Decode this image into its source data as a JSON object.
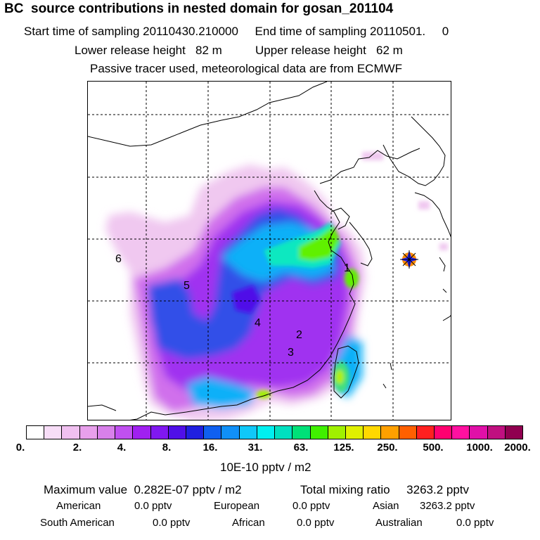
{
  "header": {
    "title": "BC  source contributions in nested domain for gosan_201104",
    "line1": "Start time of sampling 20110430.210000     End time of sampling 20110501.     0",
    "line2": "Lower release height   82 m          Upper release height   62 m",
    "line3": "Passive tracer used, meteorological data are from ECMWF"
  },
  "map": {
    "receptor_marker": "star-marker",
    "region_labels": [
      "1",
      "2",
      "3",
      "4",
      "5",
      "6"
    ]
  },
  "colorbar": {
    "colors": [
      "#ffffff",
      "#f7ddf7",
      "#f0c0f0",
      "#e8a0ec",
      "#d880ea",
      "#c050f0",
      "#a020f0",
      "#8018f0",
      "#5010e8",
      "#2020e0",
      "#1060f0",
      "#1090f8",
      "#10c8f8",
      "#00f0f0",
      "#00e0c0",
      "#00e078",
      "#40f000",
      "#a0f000",
      "#e0f000",
      "#ffd800",
      "#ffa000",
      "#ff6000",
      "#ff2020",
      "#ff0070",
      "#ff10a0",
      "#e010a8",
      "#c01080",
      "#900050"
    ],
    "tick_labels": [
      "0.",
      "2.",
      "4.",
      "8.",
      "16.",
      "31.",
      "63.",
      "125.",
      "250.",
      "500.",
      "1000.",
      "2000."
    ],
    "unit": "10E-10 pptv / m2"
  },
  "footer": {
    "maximum": "Maximum value  0.282E-07 pptv / m2",
    "total": "Total mixing ratio     3263.2 pptv",
    "american_label": "American",
    "american_value": "0.0 pptv",
    "european_label": "European",
    "european_value": "0.0 pptv",
    "asian_label": "Asian",
    "asian_value": "3263.2 pptv",
    "south_american_label": "South American",
    "south_american_value": "0.0 pptv",
    "african_label": "African",
    "african_value": "0.0 pptv",
    "australian_label": "Australian",
    "australian_value": "0.0 pptv"
  }
}
